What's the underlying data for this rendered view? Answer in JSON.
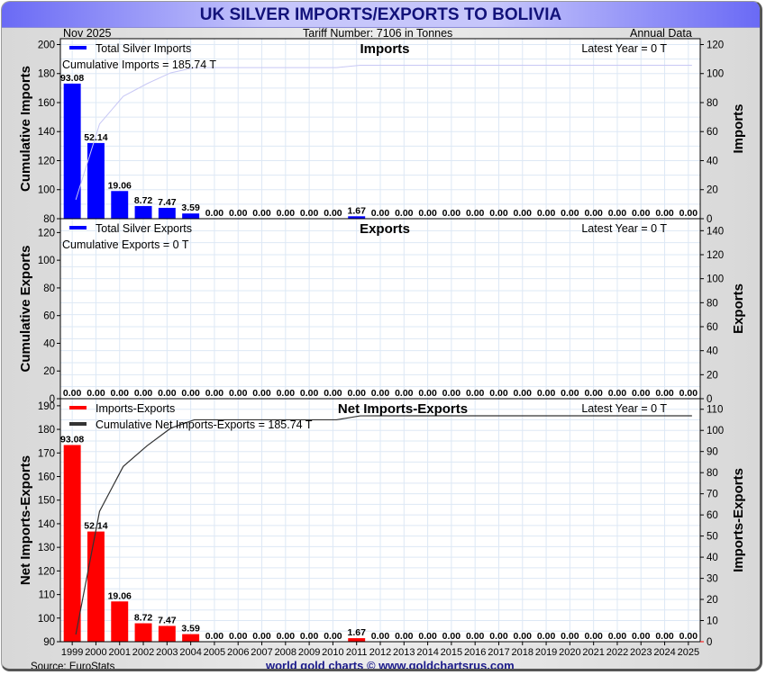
{
  "header": {
    "title": "UK SILVER IMPORTS/EXPORTS TO BOLIVIA",
    "date": "Nov  2025",
    "tariff": "Tariff Number: 7106 in Tonnes",
    "frequency": "Annual Data"
  },
  "footer": {
    "source": "Source: EuroStats",
    "brand": "world gold charts © www.goldchartsrus.com"
  },
  "colors": {
    "imports_bar": "#0000ff",
    "net_bar": "#ff0000",
    "imports_cumulative_line": "#c8c8f5",
    "net_cumulative_line": "#333333",
    "grid": "#dde8f5",
    "title_text": "#12127a"
  },
  "chart_data": [
    {
      "type": "bar",
      "title": "Imports",
      "legend": [
        "Total Silver Imports"
      ],
      "legend_position": "top-left",
      "annotation_cumulative": "Cumulative Imports = 185.74 T",
      "annotation_latest": "Latest Year = 0 T",
      "ylabel_left": "Cumulative Imports",
      "ylabel_right": "Imports",
      "left_ticks": [
        "80",
        "100",
        "120",
        "140",
        "160",
        "180",
        "200"
      ],
      "right_ticks": [
        "0",
        "20",
        "40",
        "60",
        "80",
        "100",
        "120"
      ],
      "ylim_left": [
        80,
        204
      ],
      "ylim_right": [
        0,
        124
      ],
      "categories": [
        "1999",
        "2000",
        "2001",
        "2002",
        "2003",
        "2004",
        "2005",
        "2006",
        "2007",
        "2008",
        "2009",
        "2010",
        "2011",
        "2012",
        "2013",
        "2014",
        "2015",
        "2016",
        "2017",
        "2018",
        "2019",
        "2020",
        "2021",
        "2022",
        "2023",
        "2024",
        "2025"
      ],
      "values": [
        93.08,
        52.14,
        19.06,
        8.72,
        7.47,
        3.59,
        0,
        0,
        0,
        0,
        0,
        0,
        1.67,
        0,
        0,
        0,
        0,
        0,
        0,
        0,
        0,
        0,
        0,
        0,
        0,
        0,
        0
      ],
      "labels": [
        "93.08",
        "52.14",
        "19.06",
        "8.72",
        "7.47",
        "3.59",
        "0.00",
        "0.00",
        "0.00",
        "0.00",
        "0.00",
        "0.00",
        "1.67",
        "0.00",
        "0.00",
        "0.00",
        "0.00",
        "0.00",
        "0.00",
        "0.00",
        "0.00",
        "0.00",
        "0.00",
        "0.00",
        "0.00",
        "0.00",
        "0.00"
      ],
      "cumulative": [
        93.08,
        145.22,
        164.28,
        173.0,
        180.47,
        184.06,
        184.06,
        184.06,
        184.06,
        184.06,
        184.06,
        184.06,
        185.73,
        185.74,
        185.74,
        185.74,
        185.74,
        185.74,
        185.74,
        185.74,
        185.74,
        185.74,
        185.74,
        185.74,
        185.74,
        185.74,
        185.74
      ]
    },
    {
      "type": "bar",
      "title": "Exports",
      "legend": [
        "Total Silver Exports"
      ],
      "legend_position": "top-left",
      "annotation_cumulative": "Cumulative Exports = 0 T",
      "annotation_latest": "Latest Year = 0 T",
      "ylabel_left": "Cumulative Exports",
      "ylabel_right": "Exports",
      "left_ticks": [
        "0",
        "20",
        "40",
        "60",
        "80",
        "100",
        "120"
      ],
      "right_ticks": [
        "0",
        "20",
        "40",
        "60",
        "80",
        "100",
        "120",
        "140"
      ],
      "ylim_left": [
        0,
        130
      ],
      "ylim_right": [
        0,
        150
      ],
      "categories": [
        "1999",
        "2000",
        "2001",
        "2002",
        "2003",
        "2004",
        "2005",
        "2006",
        "2007",
        "2008",
        "2009",
        "2010",
        "2011",
        "2012",
        "2013",
        "2014",
        "2015",
        "2016",
        "2017",
        "2018",
        "2019",
        "2020",
        "2021",
        "2022",
        "2023",
        "2024",
        "2025"
      ],
      "values": [
        0,
        0,
        0,
        0,
        0,
        0,
        0,
        0,
        0,
        0,
        0,
        0,
        0,
        0,
        0,
        0,
        0,
        0,
        0,
        0,
        0,
        0,
        0,
        0,
        0,
        0,
        0
      ],
      "labels": [
        "0.00",
        "0.00",
        "0.00",
        "0.00",
        "0.00",
        "0.00",
        "0.00",
        "0.00",
        "0.00",
        "0.00",
        "0.00",
        "0.00",
        "0.00",
        "0.00",
        "0.00",
        "0.00",
        "0.00",
        "0.00",
        "0.00",
        "0.00",
        "0.00",
        "0.00",
        "0.00",
        "0.00",
        "0.00",
        "0.00",
        "0.00"
      ]
    },
    {
      "type": "bar",
      "title": "Net Imports-Exports",
      "legend": [
        "Imports-Exports",
        "Cumulative Net Imports-Exports = 185.74 T"
      ],
      "legend_position": "top-left",
      "annotation_latest": "Latest Year = 0 T",
      "ylabel_left": "Net Imports-Exports",
      "ylabel_right": "Imports-Exports",
      "left_ticks": [
        "90",
        "100",
        "110",
        "120",
        "130",
        "140",
        "150",
        "160",
        "170",
        "180",
        "190"
      ],
      "right_ticks": [
        "0",
        "10",
        "20",
        "30",
        "40",
        "50",
        "60",
        "70",
        "80",
        "90",
        "100",
        "110"
      ],
      "ylim_left": [
        90,
        193
      ],
      "ylim_right": [
        0,
        115
      ],
      "xlabel_ticks": [
        "1999",
        "2000",
        "2001",
        "2002",
        "2003",
        "2004",
        "2005",
        "2006",
        "2007",
        "2008",
        "2009",
        "2010",
        "2011",
        "2012",
        "2013",
        "2014",
        "2015",
        "2016",
        "2017",
        "2018",
        "2019",
        "2020",
        "2021",
        "2022",
        "2023",
        "2024",
        "2025"
      ],
      "categories": [
        "1999",
        "2000",
        "2001",
        "2002",
        "2003",
        "2004",
        "2005",
        "2006",
        "2007",
        "2008",
        "2009",
        "2010",
        "2011",
        "2012",
        "2013",
        "2014",
        "2015",
        "2016",
        "2017",
        "2018",
        "2019",
        "2020",
        "2021",
        "2022",
        "2023",
        "2024",
        "2025"
      ],
      "values": [
        93.08,
        52.14,
        19.06,
        8.72,
        7.47,
        3.59,
        0,
        0,
        0,
        0,
        0,
        0,
        1.67,
        0,
        0,
        0,
        0,
        0,
        0,
        0,
        0,
        0,
        0,
        0,
        0,
        0,
        0
      ],
      "labels": [
        "93.08",
        "52.14",
        "19.06",
        "8.72",
        "7.47",
        "3.59",
        "0.00",
        "0.00",
        "0.00",
        "0.00",
        "0.00",
        "0.00",
        "1.67",
        "0.00",
        "0.00",
        "0.00",
        "0.00",
        "0.00",
        "0.00",
        "0.00",
        "0.00",
        "0.00",
        "0.00",
        "0.00",
        "0.00",
        "0.00",
        "0.00"
      ],
      "cumulative": [
        93.08,
        145.22,
        164.28,
        173.0,
        180.47,
        184.06,
        184.06,
        184.06,
        184.06,
        184.06,
        184.06,
        184.06,
        185.73,
        185.74,
        185.74,
        185.74,
        185.74,
        185.74,
        185.74,
        185.74,
        185.74,
        185.74,
        185.74,
        185.74,
        185.74,
        185.74,
        185.74
      ]
    }
  ]
}
